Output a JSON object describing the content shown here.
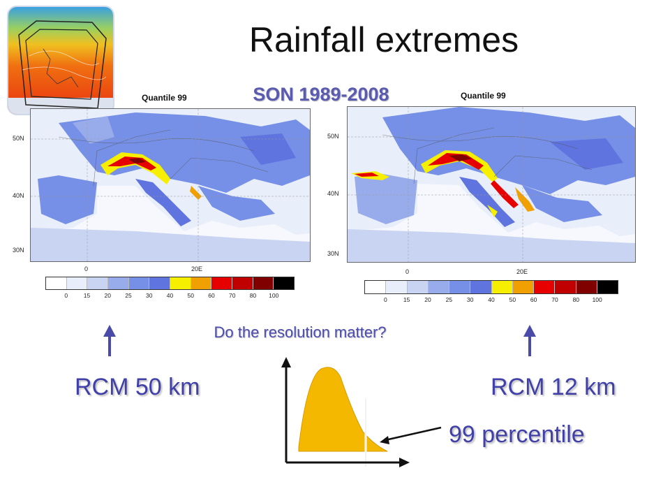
{
  "slide": {
    "title": "Rainfall extremes",
    "season": "SON 1989-2008",
    "question": "Do the resolution matter?",
    "percentile_label": "99 percentile"
  },
  "maps": [
    {
      "title": "Quantile 99",
      "model_label": "RCM 50 km",
      "lat_labels": [
        "50N",
        "40N",
        "30N"
      ],
      "lon_labels": [
        "0",
        "20E"
      ]
    },
    {
      "title": "Quantile 99",
      "model_label": "RCM 12 km",
      "lat_labels": [
        "50N",
        "40N",
        "30N"
      ],
      "lon_labels": [
        "0",
        "20E"
      ]
    }
  ],
  "colorbar": {
    "ticks": [
      "0",
      "15",
      "20",
      "25",
      "30",
      "40",
      "50",
      "60",
      "70",
      "80",
      "100"
    ],
    "colors": [
      "#ffffff",
      "#e8eefa",
      "#c9d4f2",
      "#98acec",
      "#7590e6",
      "#6074e0",
      "#f6f000",
      "#f0a000",
      "#e60000",
      "#c00000",
      "#800000",
      "#000000"
    ]
  },
  "colors": {
    "accent_text": "#4040a8",
    "arrow": "#4a4aa8",
    "distribution_fill": "#f5b800"
  }
}
